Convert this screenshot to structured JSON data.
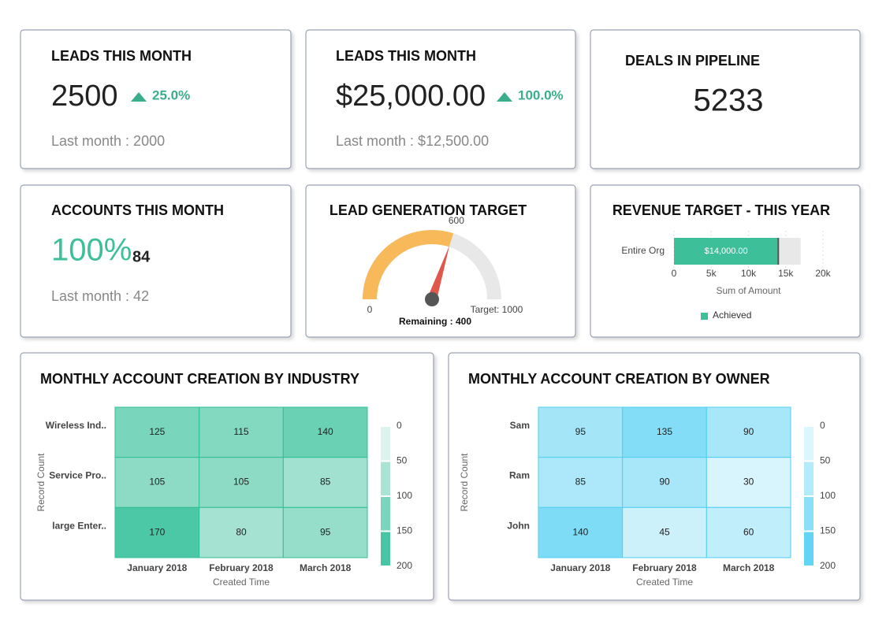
{
  "cards": [
    {
      "title": "LEADS THIS MONTH",
      "value": "2500",
      "change": "25.0%",
      "last": "Last month : 2000"
    },
    {
      "title": "LEADS THIS MONTH",
      "value": "$25,000.00",
      "change": "100.0%",
      "last": "Last month : $12,500.00"
    },
    {
      "title": "DEALS IN PIPELINE",
      "value": "5233"
    },
    {
      "title": "ACCOUNTS THIS MONTH",
      "value": "100%",
      "extra": "84",
      "last": "Last month : 42"
    }
  ],
  "chart_data": [
    {
      "type": "gauge",
      "title": "LEAD GENERATION TARGET",
      "value": 600,
      "lim": [
        0,
        1000
      ],
      "colors": [
        "#f7b95a",
        "#e8e8e8"
      ],
      "target_label": "Target: 1000",
      "remaining_label": "Remaining : 400"
    },
    {
      "type": "hbar",
      "title": "REVENUE TARGET - THIS YEAR",
      "categories": [
        "Entire Org"
      ],
      "series": [
        {
          "name": "Achieved",
          "color": "#3dbf9a",
          "values": [
            14000
          ],
          "value_labels": [
            "$14,000.00"
          ]
        }
      ],
      "xlim": [
        0,
        20000
      ],
      "xticks": [
        0,
        {
          "value": 5000,
          "label": "5k"
        },
        {
          "value": 10000,
          "label": "10k"
        },
        {
          "value": 15000,
          "label": "15k"
        },
        {
          "value": 20000,
          "label": "20k"
        }
      ],
      "xlabel": "Sum of Amount",
      "grid": true,
      "legend": "bottom"
    },
    {
      "type": "heatmap",
      "title": "MONTHLY ACCOUNT CREATION BY INDUSTRY",
      "x": [
        "January 2018",
        "February 2018",
        "March 2018"
      ],
      "y": [
        "Wireless Ind..",
        "Service Pro..",
        "large Enter.."
      ],
      "values": [
        [
          125,
          115,
          140
        ],
        [
          105,
          105,
          85
        ],
        [
          170,
          80,
          95
        ]
      ],
      "xlabel": "Created Time",
      "ylabel": "Record Count",
      "clim": [
        0,
        200
      ],
      "cticks": [
        0,
        50,
        100,
        150,
        200
      ],
      "colors": [
        "#f4faf8",
        "#2fbf97"
      ]
    },
    {
      "type": "heatmap",
      "title": "MONTHLY ACCOUNT CREATION BY OWNER",
      "x": [
        "January 2018",
        "February 2018",
        "March 2018"
      ],
      "y": [
        "Sam",
        "Ram",
        "John"
      ],
      "values": [
        [
          95,
          135,
          90
        ],
        [
          85,
          90,
          30
        ],
        [
          140,
          45,
          60
        ]
      ],
      "xlabel": "Created Time",
      "ylabel": "Record Count",
      "clim": [
        0,
        200
      ],
      "cticks": [
        0,
        50,
        100,
        150,
        200
      ],
      "colors": [
        "#f0fbfe",
        "#4fcff2"
      ]
    }
  ]
}
